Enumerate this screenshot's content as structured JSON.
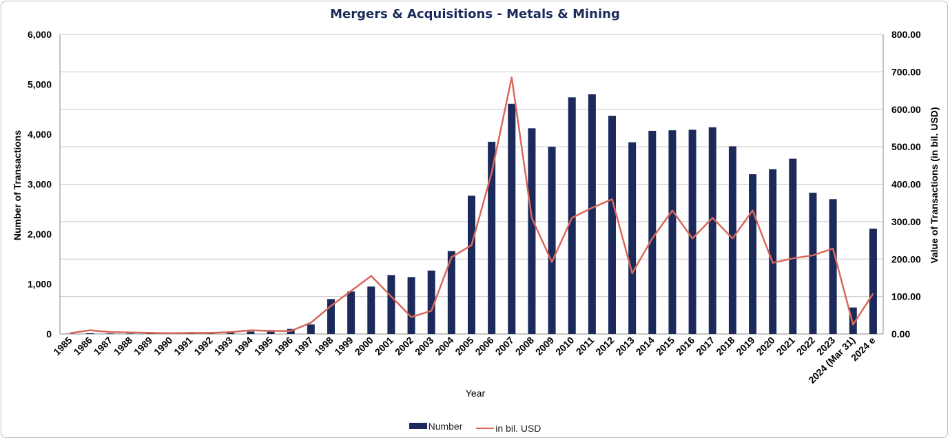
{
  "chart_data": {
    "type": "bar",
    "title": "Mergers & Acquisitions - Metals & Mining",
    "xlabel": "Year",
    "ylabel": "Number of Transactions",
    "y2label": "Value of Transactions (in bil. USD)",
    "ylim": [
      0,
      6000
    ],
    "y2lim": [
      0,
      800
    ],
    "yticks": [
      "0",
      "1,000",
      "2,000",
      "3,000",
      "4,000",
      "5,000",
      "6,000"
    ],
    "y2ticks": [
      "0.00",
      "100.00",
      "200.00",
      "300.00",
      "400.00",
      "500.00",
      "600.00",
      "700.00",
      "800.00"
    ],
    "grid": true,
    "legend_position": "bottom",
    "categories": [
      "1985",
      "1986",
      "1987",
      "1988",
      "1989",
      "1990",
      "1991",
      "1992",
      "1993",
      "1994",
      "1995",
      "1996",
      "1997",
      "1998",
      "1999",
      "2000",
      "2001",
      "2002",
      "2003",
      "2004",
      "2005",
      "2006",
      "2007",
      "2008",
      "2009",
      "2010",
      "2011",
      "2012",
      "2013",
      "2014",
      "2015",
      "2016",
      "2017",
      "2018",
      "2019",
      "2020",
      "2021",
      "2022",
      "2023",
      "2024 (Mar 31)",
      "2024 e"
    ],
    "series": [
      {
        "name": "Number",
        "type": "bar",
        "axis": "left",
        "color": "#1b2a5a",
        "values": [
          5,
          15,
          10,
          10,
          20,
          25,
          25,
          30,
          35,
          50,
          80,
          100,
          190,
          700,
          850,
          950,
          1180,
          1140,
          1270,
          1660,
          2770,
          3850,
          4610,
          4120,
          3750,
          4740,
          4800,
          4370,
          3840,
          4070,
          4080,
          4090,
          4140,
          3760,
          3200,
          3300,
          3510,
          2830,
          2700,
          530,
          2110
        ]
      },
      {
        "name": "in bil. USD",
        "type": "line",
        "axis": "right",
        "color": "#d9685a",
        "values": [
          2,
          10,
          5,
          4,
          3,
          2,
          3,
          3,
          5,
          10,
          8,
          8,
          30,
          75,
          115,
          155,
          100,
          45,
          62,
          205,
          237,
          430,
          685,
          310,
          192,
          310,
          337,
          360,
          162,
          255,
          330,
          255,
          310,
          255,
          330,
          190,
          202,
          210,
          228,
          25,
          108
        ]
      }
    ]
  }
}
